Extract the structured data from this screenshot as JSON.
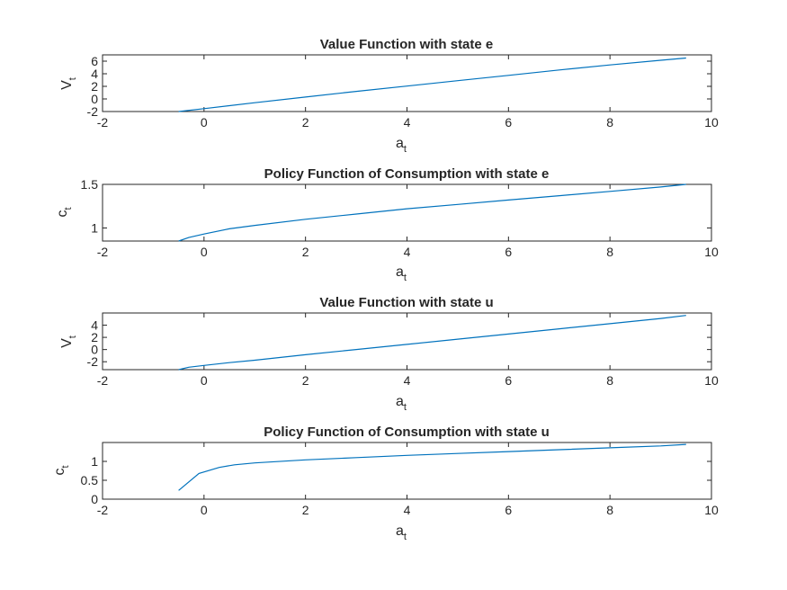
{
  "series_color": "#0072BD",
  "chart_data": [
    {
      "type": "line",
      "title": "Value Function with state e",
      "xlabel": "a",
      "xlabel_sub": "t",
      "ylabel": "V",
      "ylabel_sub": "t",
      "xlim": [
        -2,
        10
      ],
      "ylim": [
        -2,
        7
      ],
      "xticks": [
        -2,
        0,
        2,
        4,
        6,
        8,
        10
      ],
      "yticks": [
        -2,
        0,
        2,
        4,
        6
      ],
      "grid": false,
      "x": [
        -0.5,
        0,
        1,
        2,
        3,
        4,
        5,
        6,
        7,
        8,
        9,
        9.5
      ],
      "y": [
        -2.0,
        -1.55,
        -0.6,
        0.3,
        1.2,
        2.05,
        2.9,
        3.75,
        4.6,
        5.4,
        6.15,
        6.5
      ]
    },
    {
      "type": "line",
      "title": "Policy Function of Consumption with state e",
      "xlabel": "a",
      "xlabel_sub": "t",
      "ylabel": "c",
      "ylabel_sub": "t",
      "xlim": [
        -2,
        10
      ],
      "ylim": [
        0.85,
        1.5
      ],
      "xticks": [
        -2,
        0,
        2,
        4,
        6,
        8,
        10
      ],
      "yticks": [
        1,
        1.5
      ],
      "grid": false,
      "x": [
        -0.5,
        -0.3,
        0,
        0.5,
        1,
        2,
        3,
        4,
        5,
        6,
        7,
        8,
        9,
        9.5
      ],
      "y": [
        0.85,
        0.89,
        0.93,
        0.99,
        1.03,
        1.1,
        1.16,
        1.22,
        1.27,
        1.32,
        1.37,
        1.42,
        1.47,
        1.5
      ]
    },
    {
      "type": "line",
      "title": "Value Function with state u",
      "xlabel": "a",
      "xlabel_sub": "t",
      "ylabel": "V",
      "ylabel_sub": "t",
      "xlim": [
        -2,
        10
      ],
      "ylim": [
        -3.3,
        6
      ],
      "xticks": [
        -2,
        0,
        2,
        4,
        6,
        8,
        10
      ],
      "yticks": [
        -2,
        0,
        2,
        4
      ],
      "grid": false,
      "x": [
        -0.5,
        -0.3,
        0,
        0.5,
        1,
        2,
        3,
        4,
        5,
        6,
        7,
        8,
        9,
        9.5
      ],
      "y": [
        -3.3,
        -2.9,
        -2.6,
        -2.15,
        -1.75,
        -0.85,
        0.0,
        0.85,
        1.7,
        2.55,
        3.4,
        4.25,
        5.1,
        5.6
      ]
    },
    {
      "type": "line",
      "title": "Policy Function of Consumption with state u",
      "xlabel": "a",
      "xlabel_sub": "t",
      "ylabel": "c",
      "ylabel_sub": "t",
      "xlim": [
        -2,
        10
      ],
      "ylim": [
        0,
        1.5
      ],
      "xticks": [
        -2,
        0,
        2,
        4,
        6,
        8,
        10
      ],
      "yticks": [
        0,
        0.5,
        1
      ],
      "grid": false,
      "x": [
        -0.5,
        -0.1,
        0.3,
        0.6,
        1,
        2,
        3,
        4,
        5,
        6,
        7,
        8,
        9,
        9.5
      ],
      "y": [
        0.23,
        0.68,
        0.84,
        0.91,
        0.96,
        1.04,
        1.1,
        1.16,
        1.21,
        1.26,
        1.31,
        1.36,
        1.41,
        1.45
      ]
    }
  ]
}
